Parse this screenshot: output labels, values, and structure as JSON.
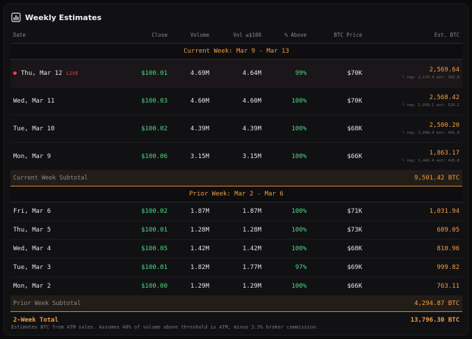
{
  "title": "Weekly Estimates",
  "icon": "bar-chart-icon",
  "columns": [
    "Date",
    "Close",
    "Volume",
    "Vol ≥$100",
    "% Above",
    "BTC Price",
    "Est. BTC"
  ],
  "current_week": {
    "label": "Current Week: Mar 9 - Mar 13",
    "rows": [
      {
        "date": "Thu, Mar 12",
        "live": "LIVE",
        "close": "$100.01",
        "volume": "4.69M",
        "vol100": "4.64M",
        "above": "99%",
        "btc": "$70K",
        "est": "2,569.64",
        "sub": "└ reg: 2,175.9  ext: 393.8"
      },
      {
        "date": "Wed, Mar 11",
        "close": "$100.03",
        "volume": "4.60M",
        "vol100": "4.60M",
        "above": "100%",
        "btc": "$70K",
        "est": "2,568.42",
        "sub": "└ reg: 2,039.2  ext: 529.2"
      },
      {
        "date": "Tue, Mar 10",
        "close": "$100.02",
        "volume": "4.39M",
        "vol100": "4.39M",
        "above": "100%",
        "btc": "$68K",
        "est": "2,500.20",
        "sub": "└ reg: 2,098.4  ext: 401.8"
      },
      {
        "date": "Mon, Mar 9",
        "close": "$100.06",
        "volume": "3.15M",
        "vol100": "3.15M",
        "above": "100%",
        "btc": "$66K",
        "est": "1,863.17",
        "sub": "└ reg: 1,442.4  ext: 420.8"
      }
    ],
    "subtotal_label": "Current Week Subtotal",
    "subtotal": "9,501.42 BTC"
  },
  "prior_week": {
    "label": "Prior Week: Mar 2 - Mar 6",
    "rows": [
      {
        "date": "Fri, Mar 6",
        "close": "$100.02",
        "volume": "1.87M",
        "vol100": "1.87M",
        "above": "100%",
        "btc": "$71K",
        "est": "1,031.94"
      },
      {
        "date": "Thu, Mar 5",
        "close": "$100.01",
        "volume": "1.28M",
        "vol100": "1.28M",
        "above": "100%",
        "btc": "$73K",
        "est": "689.05"
      },
      {
        "date": "Wed, Mar 4",
        "close": "$100.05",
        "volume": "1.42M",
        "vol100": "1.42M",
        "above": "100%",
        "btc": "$68K",
        "est": "810.96"
      },
      {
        "date": "Tue, Mar 3",
        "close": "$100.01",
        "volume": "1.82M",
        "vol100": "1.77M",
        "above": "97%",
        "btc": "$69K",
        "est": "999.82"
      },
      {
        "date": "Mon, Mar 2",
        "close": "$100.00",
        "volume": "1.29M",
        "vol100": "1.29M",
        "above": "100%",
        "btc": "$66K",
        "est": "763.11"
      }
    ],
    "subtotal_label": "Prior Week Subtotal",
    "subtotal": "4,294.87 BTC"
  },
  "total_label": "2-Week Total",
  "total": "13,796.30 BTC",
  "footer": "Estimates BTC from ATM sales. Assumes 40% of volume above threshold is ATM, minus 2.5% broker commission."
}
